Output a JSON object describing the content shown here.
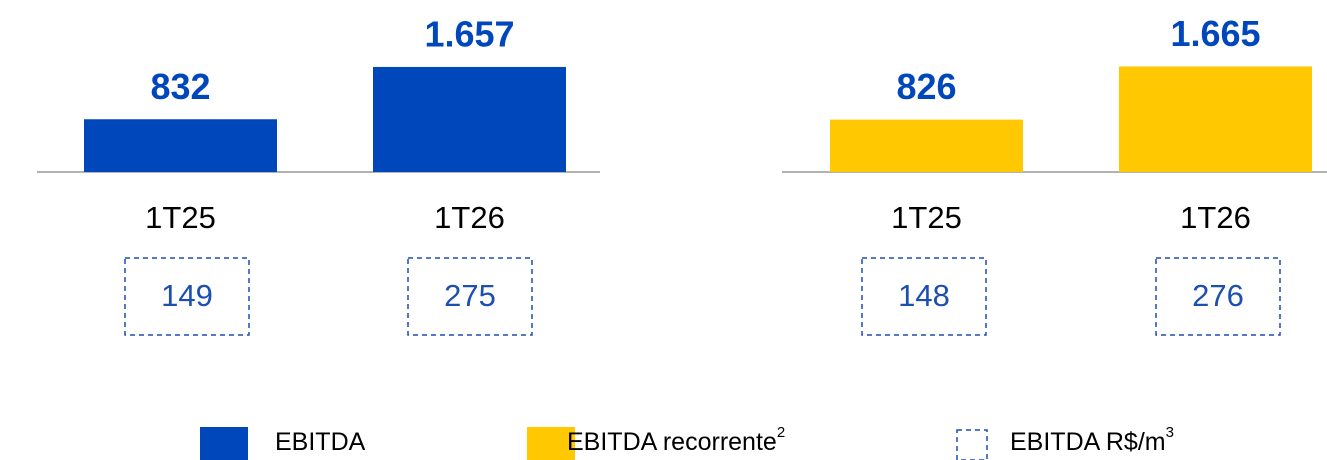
{
  "charts": [
    {
      "chart_data": {
        "type": "bar",
        "categories": [
          "1T25",
          "1T26"
        ],
        "values": [
          832,
          1657
        ],
        "value_labels": [
          "832",
          "1.657"
        ],
        "color": "#0047bb",
        "per_m3_values": [
          149,
          275
        ]
      }
    },
    {
      "chart_data": {
        "type": "bar",
        "categories": [
          "1T25",
          "1T26"
        ],
        "values": [
          826,
          1665
        ],
        "value_labels": [
          "826",
          "1.665"
        ],
        "color": "#ffc800",
        "per_m3_values": [
          148,
          276
        ]
      }
    }
  ],
  "legend": [
    {
      "label": "EBITDA",
      "color": "#0047bb"
    },
    {
      "label": "EBITDA recorrente",
      "sup": "2",
      "color": "#ffc800"
    },
    {
      "label": "EBITDA R$/m",
      "sup": "3"
    }
  ]
}
